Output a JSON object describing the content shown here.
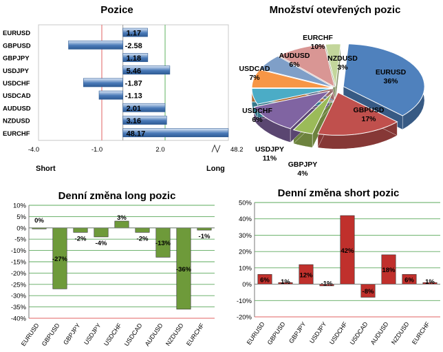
{
  "chart_data": [
    {
      "type": "bar",
      "orientation": "horizontal",
      "title": "Pozice",
      "categories": [
        "EURUSD",
        "GBPUSD",
        "GBPJPY",
        "USDJPY",
        "USDCHF",
        "USDCAD",
        "AUDUSD",
        "NZDUSD",
        "EURCHF"
      ],
      "values": [
        1.17,
        -2.58,
        1.18,
        5.46,
        -1.87,
        -1.13,
        2.01,
        3.16,
        48.17
      ],
      "value_labels": [
        "1.17",
        "-2.58",
        "1.18",
        "5.46",
        "-1.87",
        "-1.13",
        "2.01",
        "3.16",
        "48.17"
      ],
      "x_ticks": [
        "-4.0",
        "-1.0",
        "2.0",
        "48.2"
      ],
      "xlim": [
        -4.0,
        48.2
      ],
      "axis_break": "between 2.0 and 48.2",
      "left_label": "Short",
      "right_label": "Long",
      "colors": {
        "bar": "#4a7ab8",
        "bar_light": "#dce8f7",
        "red_line": "#e06060",
        "green_line": "#5fb35f"
      }
    },
    {
      "type": "pie",
      "title": "Množství otevřených pozic",
      "labels": [
        "EURUSD",
        "GBPUSD",
        "GBPJPY",
        "USDJPY",
        "USDCHF",
        "USDCAD",
        "AUDUSD",
        "EURCHF",
        "NZDUSD"
      ],
      "values": [
        36,
        17,
        4,
        11,
        6,
        7,
        6,
        10,
        3
      ],
      "value_labels": [
        "36%",
        "17%",
        "4%",
        "11%",
        "6%",
        "7%",
        "6%",
        "10%",
        "3%"
      ],
      "colors": [
        "#4f81bd",
        "#c0504d",
        "#9bbb59",
        "#8064a2",
        "#4bacc6",
        "#f79646",
        "#7f9fc8",
        "#d99694",
        "#c3d69b"
      ]
    },
    {
      "type": "bar",
      "title": "Denní změna long pozic",
      "categories": [
        "EURUSD",
        "GBPUSD",
        "GBPJPY",
        "USDJPY",
        "USDCHF",
        "USDCAD",
        "AUDUSD",
        "NZDUSD",
        "EURCHF"
      ],
      "values": [
        0,
        -27,
        -2,
        -4,
        3,
        -2,
        -13,
        -36,
        -1
      ],
      "value_labels": [
        "0%",
        "-27%",
        "-2%",
        "-4%",
        "3%",
        "-2%",
        "-13%",
        "-36%",
        "-1%"
      ],
      "y_ticks": [
        "10%",
        "5%",
        "0%",
        "-5%",
        "-10%",
        "-15%",
        "-20%",
        "-25%",
        "-30%",
        "-35%",
        "-40%"
      ],
      "ylim": [
        -40,
        10
      ],
      "grid": true,
      "colors": {
        "bar": "#6e9a3a",
        "grid": "#5aa85a",
        "red_line": "#e06060"
      }
    },
    {
      "type": "bar",
      "title": "Denní změna short pozic",
      "categories": [
        "EURUSD",
        "GBPUSD",
        "GBPJPY",
        "USDJPY",
        "USDCHF",
        "USDCAD",
        "AUDUSD",
        "NZDUSD",
        "EURCHF"
      ],
      "values": [
        6,
        1,
        12,
        -1,
        42,
        -8,
        18,
        6,
        1
      ],
      "value_labels": [
        "6%",
        "1%",
        "12%",
        "-1%",
        "42%",
        "-8%",
        "18%",
        "6%",
        "1%"
      ],
      "y_ticks": [
        "50%",
        "40%",
        "30%",
        "20%",
        "10%",
        "0%",
        "-10%",
        "-20%"
      ],
      "ylim": [
        -20,
        50
      ],
      "grid": true,
      "colors": {
        "bar": "#c0302c",
        "grid": "#5aa85a",
        "red_line": "#e06060"
      }
    }
  ]
}
